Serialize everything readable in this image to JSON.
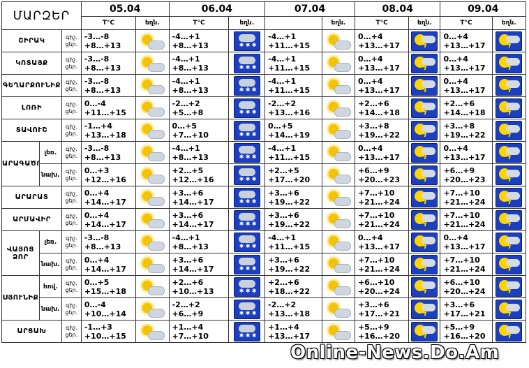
{
  "title": "ՄԱՐԶԵՐ",
  "dates": [
    "05.04",
    "06.04",
    "07.04",
    "08.04",
    "09.04"
  ],
  "sub": {
    "t": "T°C",
    "w": "եղն."
  },
  "time": {
    "n": "գիշ.",
    "d": "ցեր."
  },
  "rows": [
    {
      "region": "ՇԻՐԱԿ",
      "sub": "",
      "cells": [
        [
          "-3…-8",
          "+8…+13",
          "sun-cloud"
        ],
        [
          "-4…+1",
          "+8…+13",
          "snow"
        ],
        [
          "-4…+1",
          "+11…+15",
          "sun-cloud"
        ],
        [
          "0…+4",
          "+13…+17",
          "storm"
        ],
        [
          "0…+4",
          "+13…+17",
          "storm"
        ]
      ]
    },
    {
      "region": "ԿՈՏԱՅՔ",
      "sub": "",
      "cells": [
        [
          "-3…-8",
          "+8…+13",
          "sun-cloud"
        ],
        [
          "-4…+1",
          "+8…+13",
          "snow"
        ],
        [
          "-4…+1",
          "+11…+15",
          "sun-cloud"
        ],
        [
          "0…+4",
          "+13…+17",
          "storm"
        ],
        [
          "0…+4",
          "+13…+17",
          "storm"
        ]
      ]
    },
    {
      "region": "ԳԵՂԱՐՔՈՒՆԻՔ",
      "sub": "",
      "cells": [
        [
          "-3…-8",
          "+8…+13",
          "sun-cloud"
        ],
        [
          "-4…+1",
          "+8…+13",
          "snow"
        ],
        [
          "-4…+1",
          "+11…+15",
          "sun-cloud"
        ],
        [
          "0…+4",
          "+13…+17",
          "storm"
        ],
        [
          "0…+4",
          "+13…+17",
          "storm"
        ]
      ]
    },
    {
      "region": "ԼՈՌԻ",
      "sub": "",
      "cells": [
        [
          "0…-4",
          "+11…+15",
          "sun-cloud"
        ],
        [
          "-2…+2",
          "+5…+8",
          "snow"
        ],
        [
          "-2…+2",
          "+13…+16",
          "sun-cloud"
        ],
        [
          "+2…+6",
          "+14…+18",
          "storm"
        ],
        [
          "+2…+6",
          "+14…+18",
          "storm"
        ]
      ]
    },
    {
      "region": "ՏԱՎՈՒՇ",
      "sub": "",
      "cells": [
        [
          "-1…+4",
          "+13…+18",
          "sun-cloud"
        ],
        [
          "0…+5",
          "+7…+10",
          "snow"
        ],
        [
          "0…+5",
          "+14…+19",
          "sun-cloud"
        ],
        [
          "+3…+8",
          "+19…+22",
          "storm"
        ],
        [
          "+3…+8",
          "+19…+22",
          "storm"
        ]
      ]
    },
    {
      "region": "ԱՐԱԳԱԾՈՏՆ",
      "sub": "լեռ.",
      "cells": [
        [
          "-3…-8",
          "+8…+13",
          "sun-cloud"
        ],
        [
          "-4…+1",
          "+8…+13",
          "snow"
        ],
        [
          "-4…+1",
          "+11…+15",
          "sun-cloud"
        ],
        [
          "0…+4",
          "+13…+17",
          "storm"
        ],
        [
          "0…+4",
          "+13…+17",
          "storm"
        ]
      ]
    },
    {
      "region": "",
      "sub": "նախ.",
      "cells": [
        [
          "0…+3",
          "+12…+16",
          "sun-cloud"
        ],
        [
          "+2…+5",
          "+12…+16",
          "snow"
        ],
        [
          "+2…+5",
          "+17…+20",
          "sun-cloud"
        ],
        [
          "+6…+9",
          "+20…+23",
          "storm"
        ],
        [
          "+6…+9",
          "+20…+23",
          "storm"
        ]
      ]
    },
    {
      "region": "ԱՐԱՐԱՏ",
      "sub": "",
      "cells": [
        [
          "0…+4",
          "+14…+17",
          "sun-cloud"
        ],
        [
          "+3…+6",
          "+14…+17",
          "snow"
        ],
        [
          "+3…+6",
          "+19…+22",
          "sun-cloud"
        ],
        [
          "+7…+10",
          "+21…+24",
          "storm"
        ],
        [
          "+7…+10",
          "+21…+24",
          "storm"
        ]
      ]
    },
    {
      "region": "ԱՐՄԱՎԻՐ",
      "sub": "",
      "cells": [
        [
          "0…+4",
          "+14…+17",
          "sun-cloud"
        ],
        [
          "+3…+6",
          "+14…+17",
          "snow"
        ],
        [
          "+3…+6",
          "+19…+22",
          "sun-cloud"
        ],
        [
          "+7…+10",
          "+21…+24",
          "storm"
        ],
        [
          "+7…+10",
          "+21…+24",
          "storm"
        ]
      ]
    },
    {
      "region": "ՎԱՅՈՑ ՁՈՐ",
      "sub": "լեռ.",
      "cells": [
        [
          "-3…-8",
          "+8…+13",
          "sun-cloud"
        ],
        [
          "-4…+1",
          "+8…+13",
          "snow"
        ],
        [
          "-4…+1",
          "+11…+15",
          "sun-cloud"
        ],
        [
          "0…+4",
          "+13…+17",
          "storm"
        ],
        [
          "0…+4",
          "+13…+17",
          "storm"
        ]
      ]
    },
    {
      "region": "",
      "sub": "նախ.",
      "cells": [
        [
          "0…+4",
          "+14…+17",
          "sun-cloud"
        ],
        [
          "+3…+6",
          "+14…+17",
          "snow"
        ],
        [
          "+3…+6",
          "+19…+22",
          "sun-cloud"
        ],
        [
          "+7…+10",
          "+21…+24",
          "storm"
        ],
        [
          "+7…+10",
          "+21…+24",
          "storm"
        ]
      ]
    },
    {
      "region": "ՍՅՈՒՆԻՔ",
      "sub": "հով.",
      "cells": [
        [
          "0…+5",
          "+15…+18",
          "sun-cloud"
        ],
        [
          "+2…+6",
          "+10…+13",
          "snow"
        ],
        [
          "+2…+6",
          "+18…+22",
          "sun-cloud"
        ],
        [
          "+6…+10",
          "+20…+24",
          "storm"
        ],
        [
          "+6…+10",
          "+20…+24",
          "storm"
        ]
      ]
    },
    {
      "region": "",
      "sub": "նախ.",
      "cells": [
        [
          "0…-4",
          "+10…+14",
          "sun-cloud"
        ],
        [
          "-2…+2",
          "+6…+9",
          "snow"
        ],
        [
          "-2…+2",
          "+13…+18",
          "sun-cloud"
        ],
        [
          "+3…+6",
          "+17…+21",
          "storm"
        ],
        [
          "+3…+6",
          "+17…+21",
          "storm"
        ]
      ]
    },
    {
      "region": "ԱՐՑԱԽ",
      "sub": "",
      "cells": [
        [
          "-1…+3",
          "+10…+15",
          "sun-cloud"
        ],
        [
          "+1…+4",
          "+7…+10",
          "snow"
        ],
        [
          "+1…+4",
          "+13…+17",
          "sun-cloud"
        ],
        [
          "+5…+9",
          "+16…+20",
          "storm"
        ],
        [
          "+5…+9",
          "+16…+20",
          "storm"
        ]
      ]
    }
  ],
  "watermark": "Online-News.Do.Am"
}
